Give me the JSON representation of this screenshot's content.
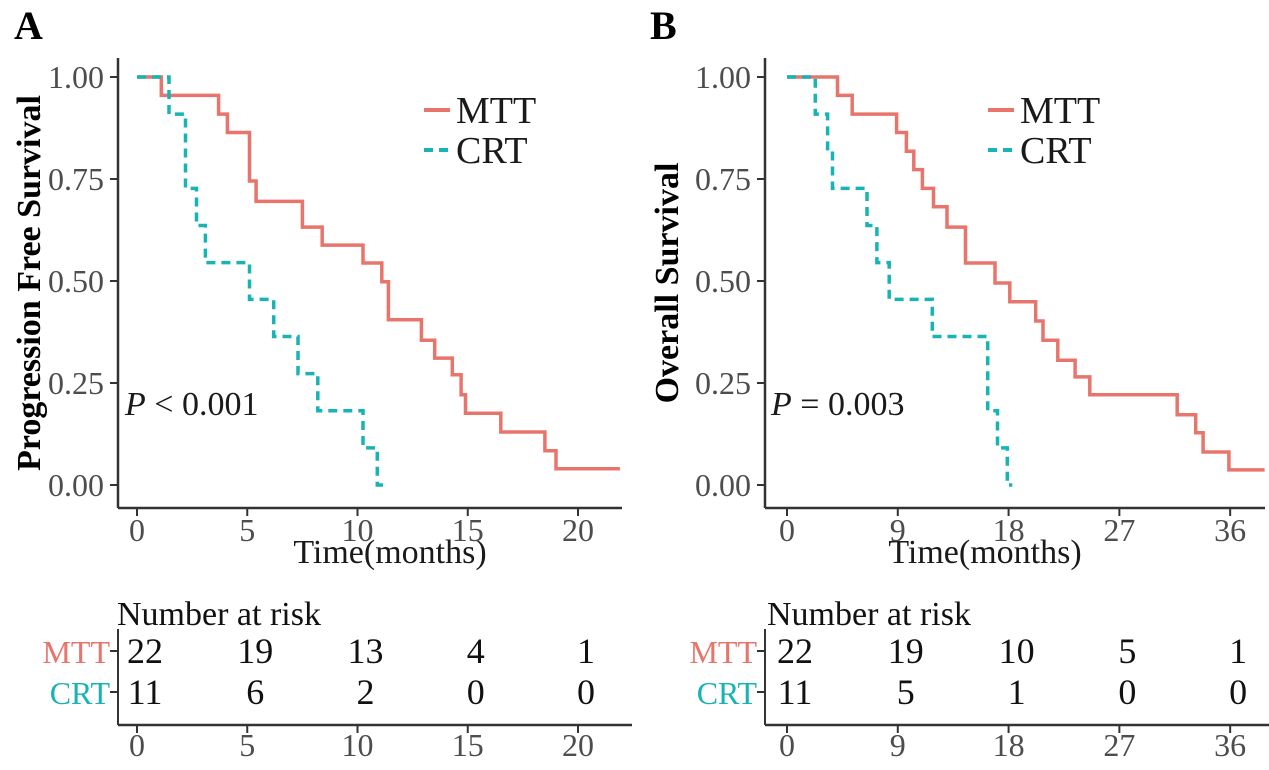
{
  "colors": {
    "mtt": "#E8756C",
    "crt": "#17B3B5",
    "axis": "#333333",
    "tick_text": "#4d4d4d"
  },
  "chart_data": [
    {
      "type": "line",
      "subtype": "kaplan-meier-step",
      "panel_label": "A",
      "ylabel": "Progression Free Survival",
      "xlabel": "Time(months)",
      "p_value_text": "P < 0.001",
      "x_ticks": [
        0,
        5,
        10,
        15,
        20
      ],
      "y_ticks": [
        "0.00",
        "0.25",
        "0.50",
        "0.75",
        "1.00"
      ],
      "xlim": [
        0,
        22
      ],
      "ylim": [
        0,
        1
      ],
      "grid": false,
      "legend_position": "top-right-inside",
      "legend": [
        "MTT",
        "CRT"
      ],
      "series": [
        {
          "name": "MTT",
          "color": "#E8756C",
          "line_style": "solid",
          "steps": [
            [
              0,
              1.0
            ],
            [
              1.1,
              0.955
            ],
            [
              3.7,
              0.909
            ],
            [
              4.1,
              0.864
            ],
            [
              5.1,
              0.745
            ],
            [
              5.4,
              0.695
            ],
            [
              7.5,
              0.632
            ],
            [
              8.4,
              0.588
            ],
            [
              10.25,
              0.544
            ],
            [
              11.1,
              0.498
            ],
            [
              11.4,
              0.405
            ],
            [
              12.9,
              0.355
            ],
            [
              13.5,
              0.311
            ],
            [
              14.3,
              0.27
            ],
            [
              14.7,
              0.221
            ],
            [
              14.9,
              0.176
            ],
            [
              16.5,
              0.13
            ],
            [
              18.5,
              0.084
            ],
            [
              19.0,
              0.04
            ]
          ],
          "end_time": 21.9
        },
        {
          "name": "CRT",
          "color": "#17B3B5",
          "line_style": "dashed",
          "steps": [
            [
              0,
              1.0
            ],
            [
              1.45,
              0.909
            ],
            [
              2.2,
              0.727
            ],
            [
              2.7,
              0.636
            ],
            [
              3.1,
              0.545
            ],
            [
              5.1,
              0.455
            ],
            [
              6.2,
              0.364
            ],
            [
              7.3,
              0.273
            ],
            [
              8.2,
              0.182
            ],
            [
              10.25,
              0.091
            ],
            [
              10.9,
              0.0
            ]
          ],
          "end_time": 11.15
        }
      ],
      "risk_table": {
        "title": "Number at risk",
        "time_points": [
          0,
          5,
          10,
          15,
          20
        ],
        "rows": [
          {
            "name": "MTT",
            "values": [
              "22",
              "19",
              "13",
              "4",
              "1"
            ]
          },
          {
            "name": "CRT",
            "values": [
              "11",
              "6",
              "2",
              "0",
              "0"
            ]
          }
        ]
      }
    },
    {
      "type": "line",
      "subtype": "kaplan-meier-step",
      "panel_label": "B",
      "ylabel": "Overall Survival",
      "xlabel": "Time(months)",
      "p_value_text": "P = 0.003",
      "x_ticks": [
        0,
        9,
        18,
        27,
        36
      ],
      "y_ticks": [
        "0.00",
        "0.25",
        "0.50",
        "0.75",
        "1.00"
      ],
      "xlim": [
        0,
        39
      ],
      "ylim": [
        0,
        1
      ],
      "grid": false,
      "legend_position": "top-right-inside",
      "legend": [
        "MTT",
        "CRT"
      ],
      "series": [
        {
          "name": "MTT",
          "color": "#E8756C",
          "line_style": "solid",
          "steps": [
            [
              0,
              1.0
            ],
            [
              4.1,
              0.955
            ],
            [
              5.3,
              0.909
            ],
            [
              8.9,
              0.864
            ],
            [
              9.7,
              0.818
            ],
            [
              10.3,
              0.773
            ],
            [
              11.0,
              0.727
            ],
            [
              11.9,
              0.682
            ],
            [
              13.0,
              0.632
            ],
            [
              14.5,
              0.544
            ],
            [
              16.9,
              0.495
            ],
            [
              18.1,
              0.449
            ],
            [
              20.2,
              0.402
            ],
            [
              20.8,
              0.355
            ],
            [
              22.0,
              0.306
            ],
            [
              23.4,
              0.265
            ],
            [
              24.6,
              0.221
            ],
            [
              31.7,
              0.172
            ],
            [
              33.2,
              0.128
            ],
            [
              33.8,
              0.081
            ],
            [
              35.9,
              0.037
            ]
          ],
          "end_time": 38.8
        },
        {
          "name": "CRT",
          "color": "#17B3B5",
          "line_style": "dashed",
          "steps": [
            [
              0,
              1.0
            ],
            [
              2.3,
              0.909
            ],
            [
              3.3,
              0.818
            ],
            [
              3.7,
              0.727
            ],
            [
              6.5,
              0.636
            ],
            [
              7.3,
              0.545
            ],
            [
              8.3,
              0.455
            ],
            [
              11.8,
              0.364
            ],
            [
              16.3,
              0.182
            ],
            [
              17.1,
              0.091
            ],
            [
              17.9,
              0.0
            ]
          ],
          "end_time": 18.3
        }
      ],
      "risk_table": {
        "title": "Number at risk",
        "time_points": [
          0,
          9,
          18,
          27,
          36
        ],
        "rows": [
          {
            "name": "MTT",
            "values": [
              "22",
              "19",
              "10",
              "5",
              "1"
            ]
          },
          {
            "name": "CRT",
            "values": [
              "11",
              "5",
              "1",
              "0",
              "0"
            ]
          }
        ]
      }
    }
  ]
}
